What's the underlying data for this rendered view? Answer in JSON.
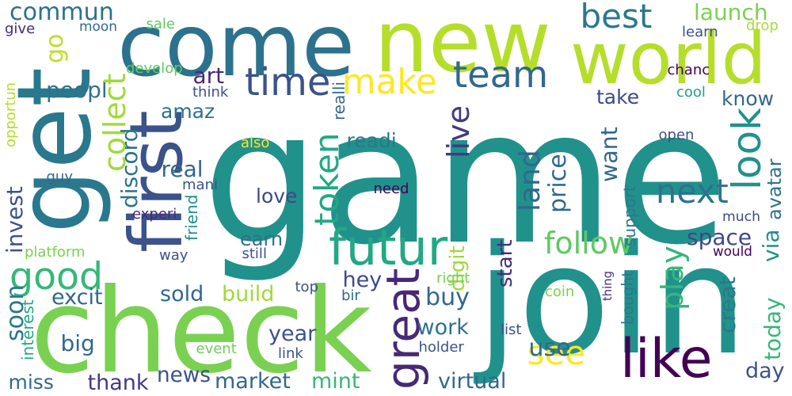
{
  "words": [
    {
      "text": "game",
      "color": "#21918c"
    },
    {
      "text": "join",
      "color": "#21918c"
    },
    {
      "text": "check",
      "color": "#7ad151"
    },
    {
      "text": "come",
      "color": "#2c728e"
    },
    {
      "text": "new",
      "color": "#b5de2b"
    },
    {
      "text": "world",
      "color": "#b5de2b"
    },
    {
      "text": "get",
      "color": "#2a788e"
    },
    {
      "text": "like",
      "color": "#440154"
    },
    {
      "text": "first",
      "color": "#3b528b"
    },
    {
      "text": "futur",
      "color": "#22a884"
    },
    {
      "text": "good",
      "color": "#35b779"
    },
    {
      "text": "time",
      "color": "#3b528b"
    },
    {
      "text": "make",
      "color": "#fde725"
    },
    {
      "text": "team",
      "color": "#31688e"
    },
    {
      "text": "look",
      "color": "#21918c"
    },
    {
      "text": "great",
      "color": "#482878"
    },
    {
      "text": "next",
      "color": "#2c728e"
    },
    {
      "text": "best",
      "color": "#2a788e"
    },
    {
      "text": "follow",
      "color": "#5ec962"
    },
    {
      "text": "token",
      "color": "#22a884"
    },
    {
      "text": "see",
      "color": "#fde725"
    },
    {
      "text": "buy",
      "color": "#31688e"
    },
    {
      "text": "play",
      "color": "#35b779"
    },
    {
      "text": "land",
      "color": "#31688e"
    },
    {
      "text": "live",
      "color": "#443983"
    },
    {
      "text": "commun",
      "color": "#2c728e"
    },
    {
      "text": "go",
      "color": "#bddf26"
    },
    {
      "text": "launch",
      "color": "#7ad151"
    },
    {
      "text": "peopl",
      "color": "#2c728e"
    },
    {
      "text": "art",
      "color": "#482878"
    },
    {
      "text": "amaz",
      "color": "#2c728e"
    },
    {
      "text": "collect",
      "color": "#a0da39"
    },
    {
      "text": "discord",
      "color": "#2c728e"
    },
    {
      "text": "real",
      "color": "#31688e"
    },
    {
      "text": "readi",
      "color": "#2a788e"
    },
    {
      "text": "know",
      "color": "#31688e"
    },
    {
      "text": "take",
      "color": "#3e4989"
    },
    {
      "text": "love",
      "color": "#3e4989"
    },
    {
      "text": "earn",
      "color": "#2c728e"
    },
    {
      "text": "still",
      "color": "#3b528b"
    },
    {
      "text": "invest",
      "color": "#3b528b"
    },
    {
      "text": "soon",
      "color": "#2a788e"
    },
    {
      "text": "excit",
      "color": "#31688e"
    },
    {
      "text": "big",
      "color": "#31688e"
    },
    {
      "text": "miss",
      "color": "#31688e"
    },
    {
      "text": "thank",
      "color": "#443983"
    },
    {
      "text": "news",
      "color": "#3b528b"
    },
    {
      "text": "sold",
      "color": "#31688e"
    },
    {
      "text": "build",
      "color": "#a0da39"
    },
    {
      "text": "hey",
      "color": "#3e4989"
    },
    {
      "text": "year",
      "color": "#3b528b"
    },
    {
      "text": "work",
      "color": "#2c728e"
    },
    {
      "text": "market",
      "color": "#31688e"
    },
    {
      "text": "mint",
      "color": "#35b779"
    },
    {
      "text": "virtual",
      "color": "#31688e"
    },
    {
      "text": "use",
      "color": "#31688e"
    },
    {
      "text": "day",
      "color": "#3b528b"
    },
    {
      "text": "today",
      "color": "#35b779"
    },
    {
      "text": "creat",
      "color": "#2a788e"
    },
    {
      "text": "space",
      "color": "#3e4989"
    },
    {
      "text": "via",
      "color": "#21918c"
    },
    {
      "text": "avatar",
      "color": "#2c728e"
    },
    {
      "text": "price",
      "color": "#31688e"
    },
    {
      "text": "want",
      "color": "#31688e"
    },
    {
      "text": "digit",
      "color": "#a0da39"
    },
    {
      "text": "start",
      "color": "#472d7b"
    },
    {
      "text": "platform",
      "color": "#7ad151"
    },
    {
      "text": "opportun",
      "color": "#b5de2b"
    },
    {
      "text": "give",
      "color": "#482878"
    },
    {
      "text": "moon",
      "color": "#31688e"
    },
    {
      "text": "sale",
      "color": "#5ec962"
    },
    {
      "text": "drop",
      "color": "#addc30"
    },
    {
      "text": "learn",
      "color": "#3b528b"
    },
    {
      "text": "develop",
      "color": "#5ec962"
    },
    {
      "text": "chanc",
      "color": "#440154"
    },
    {
      "text": "think",
      "color": "#3b528b"
    },
    {
      "text": "cool",
      "color": "#1f9f88"
    },
    {
      "text": "realli",
      "color": "#31688e"
    },
    {
      "text": "also",
      "color": "#fde725"
    },
    {
      "text": "open",
      "color": "#3b528b"
    },
    {
      "text": "need",
      "color": "#440154"
    },
    {
      "text": "guy",
      "color": "#31688e"
    },
    {
      "text": "mani",
      "color": "#3b528b"
    },
    {
      "text": "experi",
      "color": "#482878"
    },
    {
      "text": "friend",
      "color": "#21918c"
    },
    {
      "text": "support",
      "color": "#2a788e"
    },
    {
      "text": "much",
      "color": "#3e4989"
    },
    {
      "text": "would",
      "color": "#440154"
    },
    {
      "text": "way",
      "color": "#3b528b"
    },
    {
      "text": "top",
      "color": "#3b528b"
    },
    {
      "text": "bir",
      "color": "#31688e"
    },
    {
      "text": "right",
      "color": "#7ad151"
    },
    {
      "text": "thing",
      "color": "#472d7b"
    },
    {
      "text": "bought",
      "color": "#2a788e"
    },
    {
      "text": "coin",
      "color": "#7ad151"
    },
    {
      "text": "list",
      "color": "#3b528b"
    },
    {
      "text": "holder",
      "color": "#3b528b"
    },
    {
      "text": "link",
      "color": "#3b528b"
    },
    {
      "text": "event",
      "color": "#6ece58"
    },
    {
      "text": "interest",
      "color": "#22a884"
    }
  ]
}
